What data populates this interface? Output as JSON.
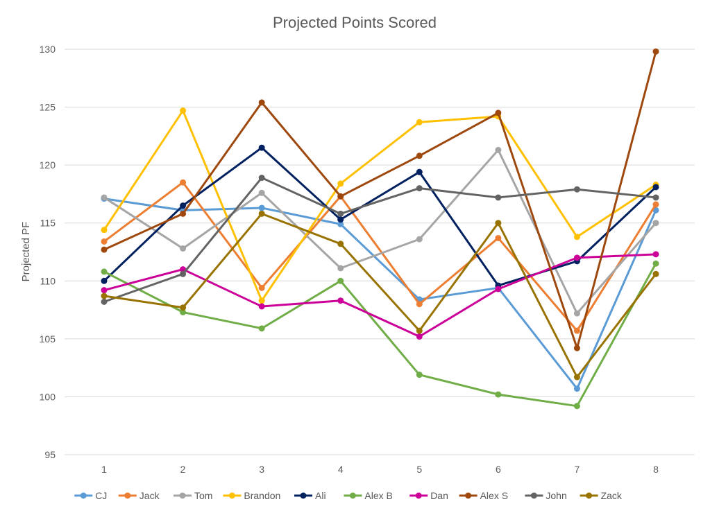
{
  "chart_data": {
    "type": "line",
    "title": "Projected Points Scored",
    "xlabel": "",
    "ylabel": "Projected PF",
    "ylim": [
      95,
      130
    ],
    "yticks": [
      95,
      100,
      105,
      110,
      115,
      120,
      125,
      130
    ],
    "grid": true,
    "legend_position": "bottom",
    "x": [
      "1",
      "2",
      "3",
      "4",
      "5",
      "6",
      "7",
      "8"
    ],
    "series": [
      {
        "name": "CJ",
        "color": "#5B9BD5",
        "values": [
          117.1,
          116.1,
          116.3,
          114.9,
          108.4,
          109.4,
          100.7,
          116.1
        ]
      },
      {
        "name": "Jack",
        "color": "#ED7D31",
        "values": [
          113.4,
          118.5,
          109.4,
          117.3,
          108.0,
          113.7,
          105.7,
          116.6
        ]
      },
      {
        "name": "Tom",
        "color": "#A5A5A5",
        "values": [
          117.2,
          112.8,
          117.6,
          111.1,
          113.6,
          121.3,
          107.2,
          115.0
        ]
      },
      {
        "name": "Brandon",
        "color": "#FFC000",
        "values": [
          114.4,
          124.7,
          108.3,
          118.4,
          123.7,
          124.2,
          113.8,
          118.3
        ]
      },
      {
        "name": "Ali",
        "color": "#002060",
        "values": [
          110.0,
          116.5,
          121.5,
          115.3,
          119.4,
          109.6,
          111.7,
          118.1
        ]
      },
      {
        "name": "Alex B",
        "color": "#70AD47",
        "values": [
          110.8,
          107.3,
          105.9,
          110.0,
          101.9,
          100.2,
          99.2,
          111.5
        ]
      },
      {
        "name": "Dan",
        "color": "#CC0099",
        "values": [
          109.2,
          111.0,
          107.8,
          108.3,
          105.2,
          109.3,
          112.0,
          112.3
        ]
      },
      {
        "name": "Alex S",
        "color": "#9E480E",
        "values": [
          112.7,
          115.8,
          125.4,
          117.3,
          120.8,
          124.5,
          104.2,
          129.8
        ]
      },
      {
        "name": "John",
        "color": "#636363",
        "values": [
          108.2,
          110.6,
          118.9,
          115.8,
          118.0,
          117.2,
          117.9,
          117.2
        ]
      },
      {
        "name": "Zack",
        "color": "#997300",
        "values": [
          108.7,
          107.7,
          115.8,
          113.2,
          105.7,
          115.0,
          101.7,
          110.6
        ]
      }
    ]
  }
}
